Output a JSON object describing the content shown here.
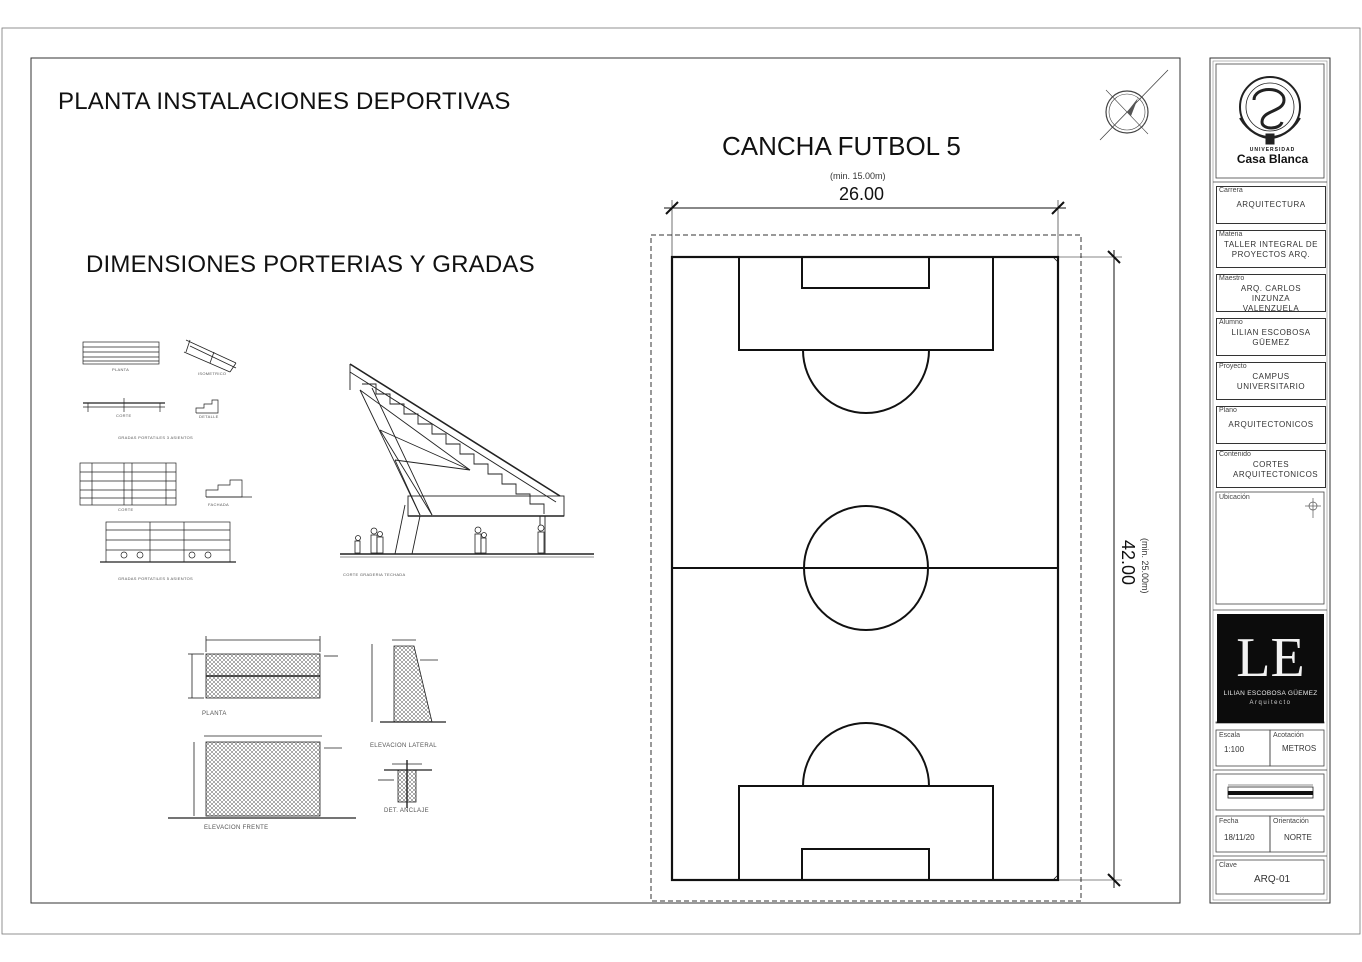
{
  "titles": {
    "main": "PLANTA INSTALACIONES DEPORTIVAS",
    "porterias": "DIMENSIONES PORTERIAS Y GRADAS",
    "field": "CANCHA FUTBOL 5"
  },
  "field": {
    "width_note": "(min. 15.00m)",
    "width": "26.00",
    "length_note": "(min. 25.00m)",
    "length": "42.00"
  },
  "goal_drawings": {
    "planta": "PLANTA",
    "elev_frente": "ELEVACION FRENTE",
    "elev_lateral": "ELEVACION LATERAL",
    "det_anclaje": "DET. ANCLAJE"
  },
  "tiny_captions": {
    "grada_planta": "PLANTA",
    "grada_isometrico": "ISOMETRICO",
    "grada_corte": "CORTE",
    "grada_detalle": "DETALLE",
    "gradas_1": "GRADAS PORTATILES 3 ASIENTOS",
    "gradas_2": "GRADAS PORTATILES 5 ASIENTOS",
    "grada_corte_2": "CORTE",
    "grada_fachada": "FACHADA",
    "grada_techada": "CORTE GRADERIA TECHADA"
  },
  "title_block": {
    "university_small": "UNIVERSIDAD",
    "university": "Casa Blanca",
    "fields": [
      {
        "label": "Carrera",
        "value": "ARQUITECTURA"
      },
      {
        "label": "Materia",
        "value": "TALLER INTEGRAL DE PROYECTOS ARQ."
      },
      {
        "label": "Maestro",
        "value": "ARQ. CARLOS INZUNZA VALENZUELA"
      },
      {
        "label": "Alumno",
        "value": "LILIAN ESCOBOSA GÜEMEZ"
      },
      {
        "label": "Proyecto",
        "value": "CAMPUS UNIVERSITARIO"
      },
      {
        "label": "Plano",
        "value": "ARQUITECTONICOS"
      },
      {
        "label": "Contenido",
        "value": "CORTES ARQUITECTONICOS"
      }
    ],
    "ubicacion_label": "Ubicación",
    "logo_letter": "LE",
    "logo_name": "LILIAN ESCOBOSA GÜEMEZ",
    "logo_role": "Arquitecto",
    "escala_label": "Escala",
    "escala": "1:100",
    "acot_label": "Acotación",
    "acot": "METROS",
    "fecha_label": "Fecha",
    "fecha": "18/11/20",
    "orient_label": "Orientación",
    "orient": "NORTE",
    "clave_label": "Clave",
    "clave": "ARQ-01"
  }
}
